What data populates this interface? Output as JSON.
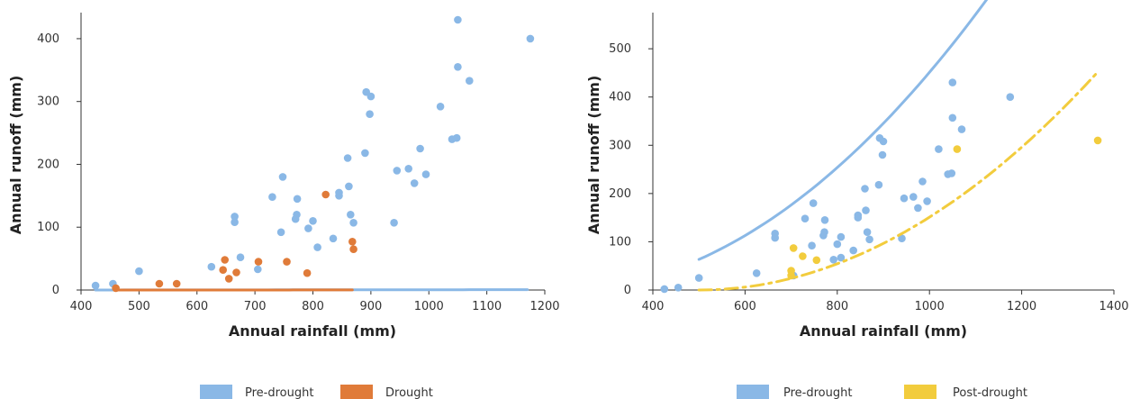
{
  "chart_data": [
    {
      "type": "scatter",
      "xlabel": "Annual rainfall (mm)",
      "ylabel": "Annual runoff (mm)",
      "xlim": [
        400,
        1200
      ],
      "ylim": [
        0,
        430
      ],
      "xticks": [
        400,
        500,
        600,
        700,
        800,
        900,
        1000,
        1100,
        1200
      ],
      "yticks": [
        0,
        100,
        200,
        300,
        400
      ],
      "legend_position": "bottom",
      "series": [
        {
          "name": "Pre-drought",
          "color": "#8ab8e6",
          "points": [
            [
              425,
              7
            ],
            [
              455,
              10
            ],
            [
              500,
              30
            ],
            [
              625,
              37
            ],
            [
              665,
              108
            ],
            [
              665,
              117
            ],
            [
              675,
              52
            ],
            [
              705,
              33
            ],
            [
              730,
              148
            ],
            [
              745,
              92
            ],
            [
              748,
              180
            ],
            [
              770,
              113
            ],
            [
              772,
              120
            ],
            [
              773,
              145
            ],
            [
              792,
              98
            ],
            [
              800,
              110
            ],
            [
              808,
              68
            ],
            [
              835,
              82
            ],
            [
              845,
              155
            ],
            [
              845,
              150
            ],
            [
              860,
              210
            ],
            [
              862,
              165
            ],
            [
              865,
              120
            ],
            [
              870,
              107
            ],
            [
              890,
              218
            ],
            [
              892,
              315
            ],
            [
              900,
              308
            ],
            [
              898,
              280
            ],
            [
              940,
              107
            ],
            [
              945,
              190
            ],
            [
              965,
              193
            ],
            [
              975,
              170
            ],
            [
              985,
              225
            ],
            [
              995,
              184
            ],
            [
              1020,
              292
            ],
            [
              1040,
              240
            ],
            [
              1048,
              242
            ],
            [
              1050,
              430
            ],
            [
              1050,
              355
            ],
            [
              1070,
              333
            ],
            [
              1175,
              400
            ]
          ],
          "fit": {
            "x0": 425,
            "x1": 1170,
            "coef": [
              100,
              5.4e-07
            ]
          }
        },
        {
          "name": "Drought",
          "color": "#e07b39",
          "points": [
            [
              460,
              3
            ],
            [
              535,
              10
            ],
            [
              565,
              10
            ],
            [
              645,
              32
            ],
            [
              648,
              48
            ],
            [
              655,
              18
            ],
            [
              668,
              28
            ],
            [
              706,
              45
            ],
            [
              755,
              45
            ],
            [
              790,
              27
            ],
            [
              822,
              152
            ],
            [
              868,
              77
            ],
            [
              870,
              65
            ]
          ],
          "fit": {
            "x0": 460,
            "x1": 868,
            "coef": [
              400,
              5.4e-07
            ]
          }
        }
      ]
    },
    {
      "type": "scatter",
      "xlabel": "Annual rainfall (mm)",
      "ylabel": "Annual runoff (mm)",
      "xlim": [
        400,
        1400
      ],
      "ylim": [
        0,
        560
      ],
      "xticks": [
        400,
        600,
        800,
        1000,
        1200,
        1400
      ],
      "yticks": [
        0,
        100,
        200,
        300,
        400,
        500
      ],
      "legend_position": "bottom",
      "series": [
        {
          "name": "Pre-drought",
          "color": "#8ab8e6",
          "points": [
            [
              425,
              2
            ],
            [
              455,
              5
            ],
            [
              500,
              25
            ],
            [
              625,
              35
            ],
            [
              665,
              108
            ],
            [
              665,
              117
            ],
            [
              705,
              30
            ],
            [
              730,
              148
            ],
            [
              745,
              92
            ],
            [
              748,
              180
            ],
            [
              770,
              113
            ],
            [
              772,
              120
            ],
            [
              773,
              145
            ],
            [
              792,
              63
            ],
            [
              800,
              95
            ],
            [
              808,
              110
            ],
            [
              808,
              67
            ],
            [
              835,
              82
            ],
            [
              845,
              155
            ],
            [
              845,
              150
            ],
            [
              860,
              210
            ],
            [
              862,
              165
            ],
            [
              865,
              120
            ],
            [
              870,
              105
            ],
            [
              890,
              218
            ],
            [
              892,
              315
            ],
            [
              900,
              308
            ],
            [
              898,
              280
            ],
            [
              940,
              107
            ],
            [
              945,
              190
            ],
            [
              965,
              193
            ],
            [
              975,
              170
            ],
            [
              985,
              225
            ],
            [
              995,
              184
            ],
            [
              1020,
              292
            ],
            [
              1040,
              240
            ],
            [
              1048,
              242
            ],
            [
              1050,
              430
            ],
            [
              1050,
              357
            ],
            [
              1070,
              333
            ],
            [
              1175,
              400
            ]
          ],
          "fit": {
            "x0": 500,
            "x1": 1365,
            "coef": [
              200,
              0.000705
            ]
          }
        },
        {
          "name": "Post-drought",
          "color": "#f2cc3d",
          "points": [
            [
              700,
              40
            ],
            [
              700,
              30
            ],
            [
              705,
              87
            ],
            [
              725,
              70
            ],
            [
              755,
              62
            ],
            [
              1060,
              292
            ],
            [
              1365,
              310
            ]
          ],
          "fit": {
            "x0": 500,
            "x1": 1365,
            "coef": [
              500,
              0.000604
            ]
          }
        }
      ]
    }
  ]
}
